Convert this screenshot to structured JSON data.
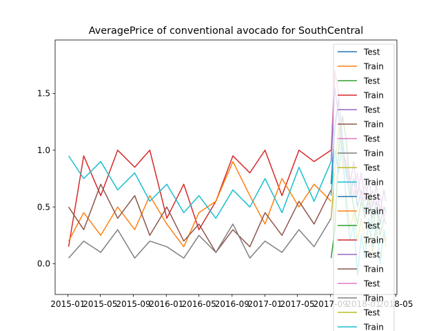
{
  "chart_data": {
    "type": "line",
    "title": "AveragePrice of conventional avocado for SouthCentral",
    "xlabel": "",
    "ylabel": "",
    "x_ticks": [
      "2015-01",
      "2015-05",
      "2015-09",
      "2016-01",
      "2016-05",
      "2016-09",
      "2017-01",
      "2017-05",
      "2017-09",
      "2018-01",
      "2018-05"
    ],
    "y_ticks": [
      "0.0",
      "0.5",
      "1.0",
      "1.5"
    ],
    "xlim": [
      "2014-11-15",
      "2018-05-05"
    ],
    "ylim": [
      -0.27,
      1.97
    ],
    "grid": false,
    "legend_placement": "top-right",
    "legend_entries": [
      {
        "label": "Test",
        "color": "#1f77b4"
      },
      {
        "label": "Train",
        "color": "#ff7f0e"
      },
      {
        "label": "Test",
        "color": "#2ca02c"
      },
      {
        "label": "Train",
        "color": "#d62728"
      },
      {
        "label": "Test",
        "color": "#9467bd"
      },
      {
        "label": "Train",
        "color": "#8c564b"
      },
      {
        "label": "Test",
        "color": "#e377c2"
      },
      {
        "label": "Train",
        "color": "#7f7f7f"
      },
      {
        "label": "Test",
        "color": "#bcbd22"
      },
      {
        "label": "Train",
        "color": "#17becf"
      },
      {
        "label": "Test",
        "color": "#1f77b4"
      },
      {
        "label": "Train",
        "color": "#ff7f0e"
      },
      {
        "label": "Test",
        "color": "#2ca02c"
      },
      {
        "label": "Train",
        "color": "#d62728"
      },
      {
        "label": "Test",
        "color": "#9467bd"
      },
      {
        "label": "Train",
        "color": "#8c564b"
      },
      {
        "label": "Test",
        "color": "#e377c2"
      },
      {
        "label": "Train",
        "color": "#7f7f7f"
      },
      {
        "label": "Test",
        "color": "#bcbd22"
      },
      {
        "label": "Train",
        "color": "#17becf"
      }
    ],
    "series": [
      {
        "name": "Train",
        "color": "#d62728",
        "x": [
          "2015-01-04",
          "2015-03-01",
          "2015-05-03",
          "2015-07-05",
          "2015-09-06",
          "2015-11-01",
          "2016-01-03",
          "2016-03-06",
          "2016-05-01",
          "2016-07-03",
          "2016-09-04",
          "2016-11-06",
          "2017-01-01",
          "2017-03-05",
          "2017-05-07",
          "2017-07-02",
          "2017-09-03"
        ],
        "y": [
          0.15,
          0.95,
          0.6,
          1.0,
          0.85,
          1.0,
          0.4,
          0.7,
          0.3,
          0.55,
          0.95,
          0.8,
          1.0,
          0.6,
          1.0,
          0.9,
          1.0
        ]
      },
      {
        "name": "Train",
        "color": "#ff7f0e",
        "x": [
          "2015-01-04",
          "2015-03-01",
          "2015-05-03",
          "2015-07-05",
          "2015-09-06",
          "2015-11-01",
          "2016-01-03",
          "2016-03-06",
          "2016-05-01",
          "2016-07-03",
          "2016-09-04",
          "2016-11-06",
          "2017-01-01",
          "2017-03-05",
          "2017-05-07",
          "2017-07-02",
          "2017-09-03"
        ],
        "y": [
          0.2,
          0.45,
          0.25,
          0.5,
          0.3,
          0.6,
          0.35,
          0.15,
          0.45,
          0.55,
          0.9,
          0.6,
          0.35,
          0.75,
          0.5,
          0.7,
          0.55
        ]
      },
      {
        "name": "Train",
        "color": "#17becf",
        "x": [
          "2015-01-04",
          "2015-03-01",
          "2015-05-03",
          "2015-07-05",
          "2015-09-06",
          "2015-11-01",
          "2016-01-03",
          "2016-03-06",
          "2016-05-01",
          "2016-07-03",
          "2016-09-04",
          "2016-11-06",
          "2017-01-01",
          "2017-03-05",
          "2017-05-07",
          "2017-07-02",
          "2017-09-03"
        ],
        "y": [
          0.95,
          0.75,
          0.9,
          0.65,
          0.8,
          0.55,
          0.7,
          0.45,
          0.6,
          0.4,
          0.65,
          0.5,
          0.75,
          0.45,
          0.85,
          0.55,
          0.9
        ]
      },
      {
        "name": "Train",
        "color": "#8c564b",
        "x": [
          "2015-01-04",
          "2015-03-01",
          "2015-05-03",
          "2015-07-05",
          "2015-09-06",
          "2015-11-01",
          "2016-01-03",
          "2016-03-06",
          "2016-05-01",
          "2016-07-03",
          "2016-09-04",
          "2016-11-06",
          "2017-01-01",
          "2017-03-05",
          "2017-05-07",
          "2017-07-02",
          "2017-09-03"
        ],
        "y": [
          0.5,
          0.3,
          0.7,
          0.4,
          0.6,
          0.25,
          0.5,
          0.2,
          0.35,
          0.1,
          0.3,
          0.15,
          0.45,
          0.25,
          0.55,
          0.35,
          0.65
        ]
      },
      {
        "name": "Train",
        "color": "#7f7f7f",
        "x": [
          "2015-01-04",
          "2015-03-01",
          "2015-05-03",
          "2015-07-05",
          "2015-09-06",
          "2015-11-01",
          "2016-01-03",
          "2016-03-06",
          "2016-05-01",
          "2016-07-03",
          "2016-09-04",
          "2016-11-06",
          "2017-01-01",
          "2017-03-05",
          "2017-05-07",
          "2017-07-02",
          "2017-09-03"
        ],
        "y": [
          0.05,
          0.2,
          0.1,
          0.3,
          0.05,
          0.2,
          0.15,
          0.05,
          0.25,
          0.1,
          0.35,
          0.05,
          0.2,
          0.1,
          0.3,
          0.15,
          0.4
        ]
      },
      {
        "name": "Test",
        "color": "#1f77b4",
        "x": [
          "2017-09-03",
          "2017-09-17",
          "2017-10-01",
          "2017-10-15",
          "2017-10-29",
          "2017-11-12",
          "2017-11-26",
          "2017-12-10",
          "2017-12-24",
          "2018-01-07",
          "2018-01-21",
          "2018-02-04",
          "2018-02-18",
          "2018-03-04",
          "2018-03-18",
          "2018-03-25"
        ],
        "y": [
          0.7,
          1.2,
          1.45,
          1.1,
          0.8,
          0.6,
          0.75,
          0.5,
          0.65,
          0.45,
          0.6,
          0.4,
          0.55,
          0.35,
          0.5,
          0.45
        ]
      },
      {
        "name": "Test",
        "color": "#e377c2",
        "x": [
          "2017-09-03",
          "2017-09-17",
          "2017-10-01",
          "2017-10-15",
          "2017-10-29",
          "2017-11-12",
          "2017-11-26",
          "2017-12-10",
          "2017-12-24",
          "2018-01-07",
          "2018-01-21",
          "2018-02-04",
          "2018-02-18",
          "2018-03-04",
          "2018-03-18",
          "2018-03-25"
        ],
        "y": [
          1.0,
          1.7,
          1.5,
          1.0,
          0.9,
          0.75,
          0.6,
          0.8,
          0.55,
          0.7,
          0.5,
          0.65,
          0.45,
          0.6,
          0.4,
          0.5
        ]
      },
      {
        "name": "Test",
        "color": "#2ca02c",
        "x": [
          "2017-09-03",
          "2017-09-17",
          "2017-10-01",
          "2017-10-15",
          "2017-10-29",
          "2017-11-12",
          "2017-11-26",
          "2017-12-10",
          "2017-12-24",
          "2018-01-07",
          "2018-01-21",
          "2018-02-04",
          "2018-02-18",
          "2018-03-04",
          "2018-03-18",
          "2018-03-25"
        ],
        "y": [
          0.05,
          0.3,
          1.0,
          1.3,
          1.1,
          0.7,
          0.5,
          0.35,
          0.55,
          0.4,
          0.6,
          0.3,
          0.5,
          0.25,
          0.4,
          0.35
        ]
      },
      {
        "name": "Test",
        "color": "#9467bd",
        "x": [
          "2017-09-03",
          "2017-09-17",
          "2017-10-01",
          "2017-10-15",
          "2017-10-29",
          "2017-11-12",
          "2017-11-26",
          "2017-12-10",
          "2017-12-24",
          "2018-01-07",
          "2018-01-21",
          "2018-02-04",
          "2018-02-18",
          "2018-03-04",
          "2018-03-18",
          "2018-03-25"
        ],
        "y": [
          0.9,
          1.55,
          1.3,
          1.0,
          0.85,
          0.7,
          0.9,
          0.6,
          0.8,
          0.55,
          0.75,
          0.5,
          0.7,
          0.45,
          0.65,
          0.55
        ]
      },
      {
        "name": "Test",
        "color": "#bcbd22",
        "x": [
          "2017-09-03",
          "2017-09-17",
          "2017-10-01",
          "2017-10-15",
          "2017-10-29",
          "2017-11-12",
          "2017-11-26",
          "2017-12-10",
          "2017-12-24",
          "2018-01-07",
          "2018-01-21",
          "2018-02-04",
          "2018-02-18",
          "2018-03-04",
          "2018-03-18",
          "2018-03-25"
        ],
        "y": [
          0.4,
          0.8,
          1.2,
          0.9,
          0.6,
          0.3,
          0.45,
          0.2,
          0.4,
          0.15,
          0.35,
          0.1,
          0.3,
          0.05,
          0.25,
          0.15
        ]
      },
      {
        "name": "Test",
        "color": "#17becf",
        "x": [
          "2017-09-03",
          "2017-09-17",
          "2017-10-01",
          "2017-10-15",
          "2017-10-29",
          "2017-11-12",
          "2017-11-26",
          "2017-12-10",
          "2017-12-24",
          "2018-01-07",
          "2018-01-21",
          "2018-02-04",
          "2018-02-18",
          "2018-03-04",
          "2018-03-18",
          "2018-03-25"
        ],
        "y": [
          0.6,
          1.0,
          0.8,
          1.1,
          0.5,
          0.2,
          0.35,
          -0.1,
          0.25,
          0.05,
          0.4,
          0.15,
          0.35,
          0.0,
          0.3,
          0.2
        ]
      }
    ]
  }
}
